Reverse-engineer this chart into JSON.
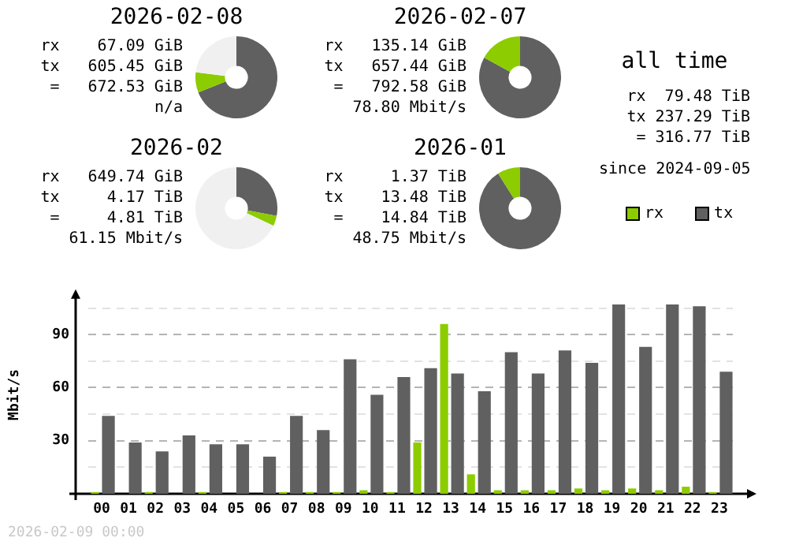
{
  "chart_data": [
    {
      "type": "donut",
      "title": "2026-02-08",
      "categories": [
        null,
        null,
        null
      ],
      "values": [
        69,
        8,
        23
      ],
      "colors": [
        "#606060",
        "#8ccc00",
        "#f0f0f0"
      ],
      "annotations": [
        "rx    67.09 GiB",
        "tx   605.45 GiB",
        " =   672.53 GiB",
        "n/a"
      ]
    },
    {
      "type": "donut",
      "title": "2026-02-07",
      "categories": [
        null,
        null,
        null
      ],
      "values": [
        83,
        17,
        0
      ],
      "colors": [
        "#606060",
        "#8ccc00",
        "#f0f0f0"
      ],
      "annotations": [
        "rx   135.14 GiB",
        "tx   657.44 GiB",
        " =   792.58 GiB",
        "78.80 Mbit/s"
      ]
    },
    {
      "type": "donut",
      "title": "2026-02",
      "categories": [
        null,
        null,
        null
      ],
      "values": [
        28,
        4,
        68
      ],
      "colors": [
        "#606060",
        "#8ccc00",
        "#f0f0f0"
      ],
      "annotations": [
        "rx   649.74 GiB",
        "tx     4.17 TiB",
        " =     4.81 TiB",
        "61.15 Mbit/s"
      ]
    },
    {
      "type": "donut",
      "title": "2026-01",
      "categories": [
        null,
        null,
        null
      ],
      "values": [
        91,
        9,
        0
      ],
      "colors": [
        "#606060",
        "#8ccc00",
        "#f0f0f0"
      ],
      "annotations": [
        "rx     1.37 TiB",
        "tx    13.48 TiB",
        " =    14.84 TiB",
        "48.75 Mbit/s"
      ]
    },
    {
      "type": "other",
      "title": "all time",
      "annotations": [
        "rx  79.48 TiB",
        "tx 237.29 TiB",
        " = 316.77 TiB",
        "since 2024-09-05"
      ]
    },
    {
      "type": "bar",
      "ylabel": "Mbit/s",
      "categories": [
        "00",
        "01",
        "02",
        "03",
        "04",
        "05",
        "06",
        "07",
        "08",
        "09",
        "10",
        "11",
        "12",
        "13",
        "14",
        "15",
        "16",
        "17",
        "18",
        "19",
        "20",
        "21",
        "22",
        "23"
      ],
      "series": [
        {
          "name": "rx",
          "color": "#8ccc00",
          "values": [
            1,
            0,
            1,
            0,
            1,
            0,
            0,
            1,
            1,
            1,
            2,
            1,
            29,
            96,
            11,
            2,
            2,
            2,
            3,
            2,
            3,
            2,
            4,
            1
          ]
        },
        {
          "name": "tx",
          "color": "#606060",
          "values": [
            44,
            29,
            24,
            33,
            28,
            28,
            21,
            44,
            36,
            76,
            56,
            66,
            71,
            68,
            58,
            80,
            68,
            81,
            74,
            107,
            83,
            107,
            106,
            69
          ]
        }
      ],
      "ylim": [
        0,
        112
      ],
      "yticks": [
        {
          "value": 15,
          "label": null
        },
        30,
        {
          "value": 45,
          "label": null
        },
        60,
        {
          "value": 75,
          "label": null
        },
        90,
        {
          "value": 105,
          "label": null
        }
      ],
      "grid": "y",
      "legend": "top right",
      "annotations": [
        "2026-02-09 00:00"
      ]
    }
  ]
}
